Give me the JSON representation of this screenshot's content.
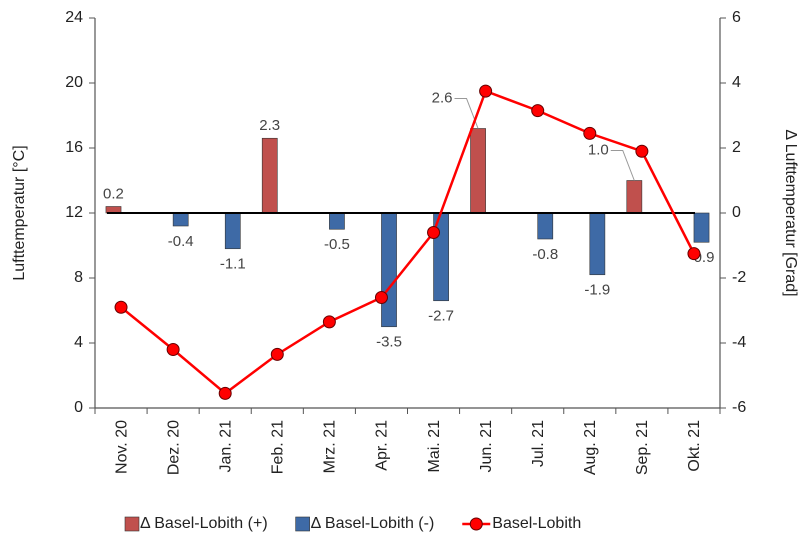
{
  "chart_data": {
    "type": "bar",
    "categories": [
      "Nov. 20",
      "Dez. 20",
      "Jan. 21",
      "Feb. 21",
      "Mrz. 21",
      "Apr. 21",
      "Mai. 21",
      "Jun. 21",
      "Jul. 21",
      "Aug. 21",
      "Sep. 21",
      "Okt. 21"
    ],
    "y_label": "Lufttemperatur [°C]",
    "y2_label": "Δ Lufttemperatur [Grad]",
    "ylim": [
      0,
      24
    ],
    "yticks": [
      0,
      4,
      8,
      12,
      16,
      20,
      24
    ],
    "y2lim": [
      -6,
      6
    ],
    "y2ticks": [
      -6,
      -4,
      -2,
      0,
      2,
      4,
      6
    ],
    "legend": "bottom",
    "series": [
      {
        "name": "Δ Basel-Lobith (+)",
        "type": "bar",
        "axis": "y2",
        "color": "#c0504d",
        "values": [
          0.2,
          null,
          null,
          2.3,
          null,
          null,
          null,
          2.6,
          null,
          null,
          1.0,
          null
        ],
        "value_labels": [
          "0.2",
          null,
          null,
          "2.3",
          null,
          null,
          null,
          "2.6",
          null,
          null,
          "1.0",
          null
        ]
      },
      {
        "name": "Δ Basel-Lobith (-)",
        "type": "bar",
        "axis": "y2",
        "color": "#3e6aa6",
        "values": [
          null,
          -0.4,
          -1.1,
          null,
          -0.5,
          -3.5,
          -2.7,
          null,
          -0.8,
          -1.9,
          null,
          -0.9
        ],
        "value_labels": [
          null,
          "-0.4",
          "-1.1",
          null,
          "-0.5",
          "-3.5",
          "-2.7",
          null,
          "-0.8",
          "-1.9",
          null,
          "-0.9"
        ]
      },
      {
        "name": "Basel-Lobith",
        "type": "line",
        "color": "#ff0000",
        "values": [
          6.2,
          3.6,
          0.9,
          3.3,
          5.3,
          6.8,
          10.8,
          19.5,
          18.3,
          16.9,
          15.8,
          9.5
        ]
      }
    ]
  }
}
